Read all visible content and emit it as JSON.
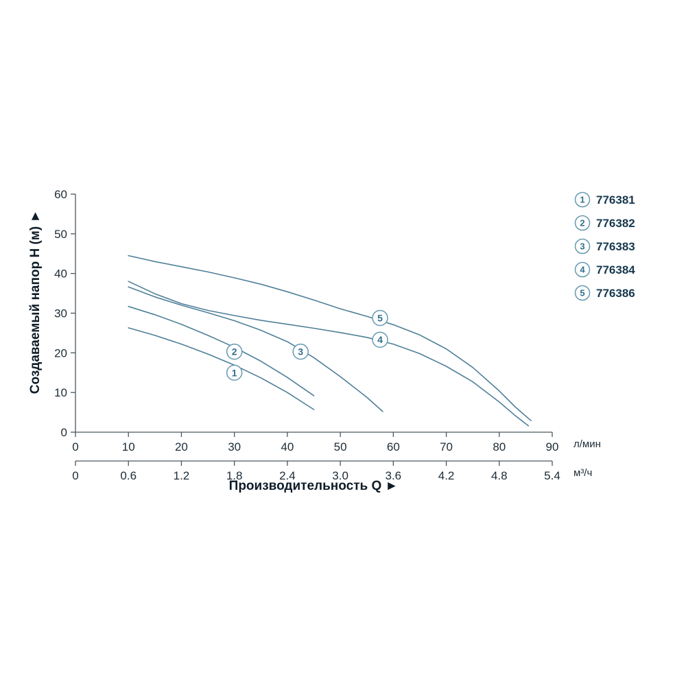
{
  "chart_data": {
    "type": "line",
    "title": "",
    "ylabel": "Создаваемый напор H (м)  ►",
    "xlabel": "Производительность Q  ►",
    "grid": false,
    "legend_position": "right-outside",
    "y_axis": {
      "min": 0,
      "max": 60,
      "ticks": [
        0,
        10,
        20,
        30,
        40,
        50,
        60
      ]
    },
    "x_axis_primary": {
      "unit": "л/мин",
      "min": 0,
      "max": 90,
      "ticks": [
        0,
        10,
        20,
        30,
        40,
        50,
        60,
        70,
        80,
        90
      ]
    },
    "x_axis_secondary": {
      "unit": "м³/ч",
      "min": 0,
      "max": 5.4,
      "tick_labels": [
        "0",
        "0.6",
        "1.2",
        "1.8",
        "2.4",
        "3.0",
        "3.6",
        "4.2",
        "4.8",
        "5.4"
      ]
    },
    "colors": {
      "curve": "#4f7f98",
      "axis": "#4a565e",
      "tick_text": "#1c2b36",
      "title_text": "#0e1c28",
      "label_circle_stroke": "#6699ae",
      "label_circle_fill": "#fdfeff",
      "label_num_text": "#336f8a",
      "legend_code_text": "#16384e"
    },
    "series": [
      {
        "num": "1",
        "code": "776381",
        "label_at": [
          30,
          15
        ],
        "points": [
          [
            10,
            26.3
          ],
          [
            15,
            24.4
          ],
          [
            20,
            22.2
          ],
          [
            25,
            19.7
          ],
          [
            30,
            16.9
          ],
          [
            35,
            13.7
          ],
          [
            40,
            10
          ],
          [
            45,
            5.7
          ]
        ]
      },
      {
        "num": "2",
        "code": "776382",
        "label_at": [
          30,
          20.3
        ],
        "points": [
          [
            10,
            31.7
          ],
          [
            15,
            29.6
          ],
          [
            20,
            27.2
          ],
          [
            25,
            24.4
          ],
          [
            30,
            21.4
          ],
          [
            35,
            17.9
          ],
          [
            40,
            13.8
          ],
          [
            45,
            9.2
          ]
        ]
      },
      {
        "num": "3",
        "code": "776383",
        "label_at": [
          42.5,
          20.3
        ],
        "points": [
          [
            10,
            36.6
          ],
          [
            15,
            34.1
          ],
          [
            20,
            32
          ],
          [
            25,
            30.1
          ],
          [
            30,
            28.1
          ],
          [
            35,
            25.7
          ],
          [
            40,
            22.8
          ],
          [
            45,
            18.8
          ],
          [
            50,
            14
          ],
          [
            55,
            8.8
          ],
          [
            58,
            5.2
          ]
        ]
      },
      {
        "num": "4",
        "code": "776384",
        "label_at": [
          57.5,
          23.3
        ],
        "points": [
          [
            10,
            38
          ],
          [
            15,
            34.9
          ],
          [
            20,
            32.4
          ],
          [
            25,
            30.7
          ],
          [
            30,
            29.4
          ],
          [
            35,
            28.2
          ],
          [
            40,
            27.2
          ],
          [
            45,
            26.2
          ],
          [
            50,
            25.1
          ],
          [
            55,
            23.9
          ],
          [
            60,
            22.2
          ],
          [
            65,
            19.8
          ],
          [
            70,
            16.6
          ],
          [
            75,
            12.7
          ],
          [
            80,
            7.6
          ],
          [
            83,
            4.2
          ],
          [
            85.5,
            1.6
          ]
        ]
      },
      {
        "num": "5",
        "code": "776386",
        "label_at": [
          57.5,
          28.8
        ],
        "points": [
          [
            10,
            44.5
          ],
          [
            15,
            43
          ],
          [
            20,
            41.7
          ],
          [
            25,
            40.4
          ],
          [
            30,
            38.9
          ],
          [
            35,
            37.3
          ],
          [
            40,
            35.4
          ],
          [
            45,
            33.3
          ],
          [
            50,
            31.1
          ],
          [
            55,
            29.2
          ],
          [
            60,
            27.1
          ],
          [
            65,
            24.5
          ],
          [
            70,
            21
          ],
          [
            75,
            16.3
          ],
          [
            80,
            10.4
          ],
          [
            83,
            6.4
          ],
          [
            86,
            2.9
          ]
        ]
      }
    ]
  }
}
